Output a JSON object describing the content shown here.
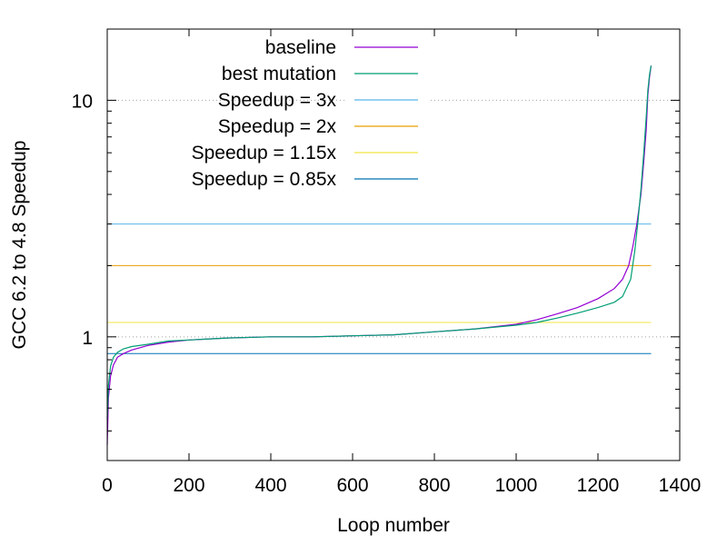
{
  "chart_data": {
    "type": "line",
    "title": "",
    "xlabel": "Loop number",
    "ylabel": "GCC 6.2 to 4.8 Speedup",
    "xlim": [
      0,
      1400
    ],
    "ylim": [
      0.3,
      20
    ],
    "yscale": "log",
    "xticks": [
      "0",
      "200",
      "400",
      "600",
      "800",
      "1000",
      "1200",
      "1400"
    ],
    "yticks": [
      "1",
      "10"
    ],
    "grid": "dotted lines at y = 1 and y = 10",
    "legend_position": "top-left",
    "series": [
      {
        "name": "baseline",
        "color": "#9400d3",
        "x": [
          0,
          3,
          8,
          15,
          25,
          40,
          60,
          100,
          150,
          200,
          250,
          300,
          400,
          500,
          600,
          700,
          800,
          900,
          1000,
          1050,
          1100,
          1150,
          1200,
          1240,
          1260,
          1275,
          1285,
          1295,
          1305,
          1312,
          1318,
          1322,
          1326,
          1330
        ],
        "values": [
          0.35,
          0.55,
          0.68,
          0.76,
          0.82,
          0.85,
          0.88,
          0.92,
          0.95,
          0.97,
          0.98,
          0.99,
          1.0,
          1.0,
          1.01,
          1.02,
          1.05,
          1.08,
          1.13,
          1.18,
          1.25,
          1.33,
          1.45,
          1.6,
          1.75,
          2.0,
          2.4,
          3.0,
          4.0,
          5.5,
          7.5,
          10.5,
          12.5,
          14.0
        ]
      },
      {
        "name": "best mutation",
        "color": "#009e73",
        "x": [
          0,
          3,
          8,
          15,
          25,
          40,
          60,
          100,
          150,
          200,
          250,
          300,
          400,
          500,
          600,
          700,
          800,
          900,
          1000,
          1050,
          1100,
          1150,
          1200,
          1240,
          1260,
          1280,
          1290,
          1298,
          1305,
          1312,
          1318,
          1322,
          1326,
          1330
        ],
        "values": [
          0.45,
          0.62,
          0.75,
          0.82,
          0.86,
          0.89,
          0.91,
          0.93,
          0.96,
          0.97,
          0.98,
          0.99,
          1.0,
          1.0,
          1.01,
          1.02,
          1.05,
          1.08,
          1.12,
          1.15,
          1.2,
          1.26,
          1.33,
          1.4,
          1.48,
          1.75,
          2.3,
          3.1,
          4.2,
          6.0,
          8.5,
          11.0,
          12.8,
          14.0
        ]
      }
    ],
    "reference_lines": [
      {
        "name": "Speedup = 3x",
        "value": 3,
        "color": "#56b4e9"
      },
      {
        "name": "Speedup = 2x",
        "value": 2,
        "color": "#e69f00"
      },
      {
        "name": "Speedup = 1.15x",
        "value": 1.15,
        "color": "#f0e442"
      },
      {
        "name": "Speedup = 0.85x",
        "value": 0.85,
        "color": "#0072b2"
      }
    ],
    "reference_lines_x_range": [
      0,
      1330
    ]
  }
}
